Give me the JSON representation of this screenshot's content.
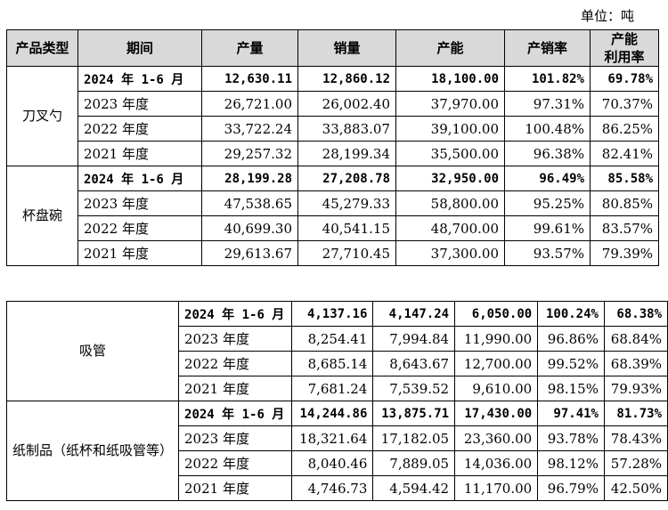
{
  "unit_label": "单位：吨",
  "headers": {
    "product_type": "产品类型",
    "period": "期间",
    "output": "产量",
    "sales": "销量",
    "capacity": "产能",
    "sales_ratio": "产销率",
    "utilization_line1": "产能",
    "utilization_line2": "利用率"
  },
  "groups": [
    {
      "type": "刀叉勺",
      "rows": [
        {
          "period": "2024 年 1-6 月",
          "output": "12,630.11",
          "sales": "12,860.12",
          "capacity": "18,100.00",
          "sales_ratio": "101.82%",
          "utilization": "69.78%"
        },
        {
          "period": "2023 年度",
          "output": "26,721.00",
          "sales": "26,002.40",
          "capacity": "37,970.00",
          "sales_ratio": "97.31%",
          "utilization": "70.37%"
        },
        {
          "period": "2022 年度",
          "output": "33,722.24",
          "sales": "33,883.07",
          "capacity": "39,100.00",
          "sales_ratio": "100.48%",
          "utilization": "86.25%"
        },
        {
          "period": "2021 年度",
          "output": "29,257.32",
          "sales": "28,199.34",
          "capacity": "35,500.00",
          "sales_ratio": "96.38%",
          "utilization": "82.41%"
        }
      ]
    },
    {
      "type": "杯盘碗",
      "rows": [
        {
          "period": "2024 年 1-6 月",
          "output": "28,199.28",
          "sales": "27,208.78",
          "capacity": "32,950.00",
          "sales_ratio": "96.49%",
          "utilization": "85.58%"
        },
        {
          "period": "2023 年度",
          "output": "47,538.65",
          "sales": "45,279.33",
          "capacity": "58,800.00",
          "sales_ratio": "95.25%",
          "utilization": "80.85%"
        },
        {
          "period": "2022 年度",
          "output": "40,699.30",
          "sales": "40,541.15",
          "capacity": "48,700.00",
          "sales_ratio": "99.61%",
          "utilization": "83.57%"
        },
        {
          "period": "2021 年度",
          "output": "29,613.67",
          "sales": "27,710.45",
          "capacity": "37,300.00",
          "sales_ratio": "93.57%",
          "utilization": "79.39%"
        }
      ]
    },
    {
      "type": "吸管",
      "rows": [
        {
          "period": "2024 年 1-6 月",
          "output": "4,137.16",
          "sales": "4,147.24",
          "capacity": "6,050.00",
          "sales_ratio": "100.24%",
          "utilization": "68.38%"
        },
        {
          "period": "2023 年度",
          "output": "8,254.41",
          "sales": "7,994.84",
          "capacity": "11,990.00",
          "sales_ratio": "96.86%",
          "utilization": "68.84%"
        },
        {
          "period": "2022 年度",
          "output": "8,685.14",
          "sales": "8,643.67",
          "capacity": "12,700.00",
          "sales_ratio": "99.52%",
          "utilization": "68.39%"
        },
        {
          "period": "2021 年度",
          "output": "7,681.24",
          "sales": "7,539.52",
          "capacity": "9,610.00",
          "sales_ratio": "98.15%",
          "utilization": "79.93%"
        }
      ]
    },
    {
      "type": "纸制品（纸杯和纸吸管等）",
      "rows": [
        {
          "period": "2024 年 1-6 月",
          "output": "14,244.86",
          "sales": "13,875.71",
          "capacity": "17,430.00",
          "sales_ratio": "97.41%",
          "utilization": "81.73%"
        },
        {
          "period": "2023 年度",
          "output": "18,321.64",
          "sales": "17,182.05",
          "capacity": "23,360.00",
          "sales_ratio": "93.78%",
          "utilization": "78.43%"
        },
        {
          "period": "2022 年度",
          "output": "8,040.46",
          "sales": "7,889.05",
          "capacity": "14,036.00",
          "sales_ratio": "98.12%",
          "utilization": "57.28%"
        },
        {
          "period": "2021 年度",
          "output": "4,746.73",
          "sales": "4,594.42",
          "capacity": "11,170.00",
          "sales_ratio": "96.79%",
          "utilization": "42.50%"
        }
      ]
    }
  ]
}
